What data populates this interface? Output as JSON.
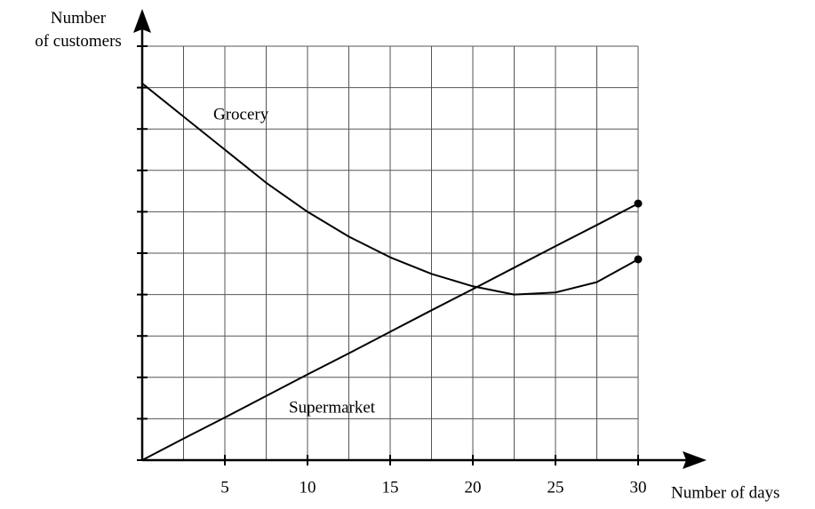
{
  "chart_data": {
    "type": "line",
    "x_label": "Number of days",
    "y_label": "Number of customers",
    "xlim": [
      0,
      30
    ],
    "ylim": [
      0,
      10
    ],
    "xticks": [
      5,
      10,
      15,
      20,
      25,
      30
    ],
    "x_minor_ticks": [
      2.5,
      7.5,
      12.5,
      17.5,
      22.5,
      27.5
    ],
    "yticks": [
      0,
      1,
      2,
      3,
      4,
      5,
      6,
      7,
      8,
      9,
      10
    ],
    "grid": true,
    "x": [
      0,
      2.5,
      5,
      7.5,
      10,
      12.5,
      15,
      17.5,
      20,
      22.5,
      25,
      27.5,
      30
    ],
    "series": [
      {
        "name": "Grocery",
        "color": "#000000",
        "values": [
          9.1,
          8.3,
          7.5,
          6.7,
          6.0,
          5.4,
          4.9,
          4.5,
          4.2,
          4.0,
          4.05,
          4.3,
          4.85
        ]
      },
      {
        "name": "Supermarket",
        "color": "#000000",
        "values": [
          0,
          0.52,
          1.03,
          1.55,
          2.07,
          2.58,
          3.1,
          3.62,
          4.13,
          4.65,
          5.17,
          5.68,
          6.2
        ]
      }
    ]
  }
}
